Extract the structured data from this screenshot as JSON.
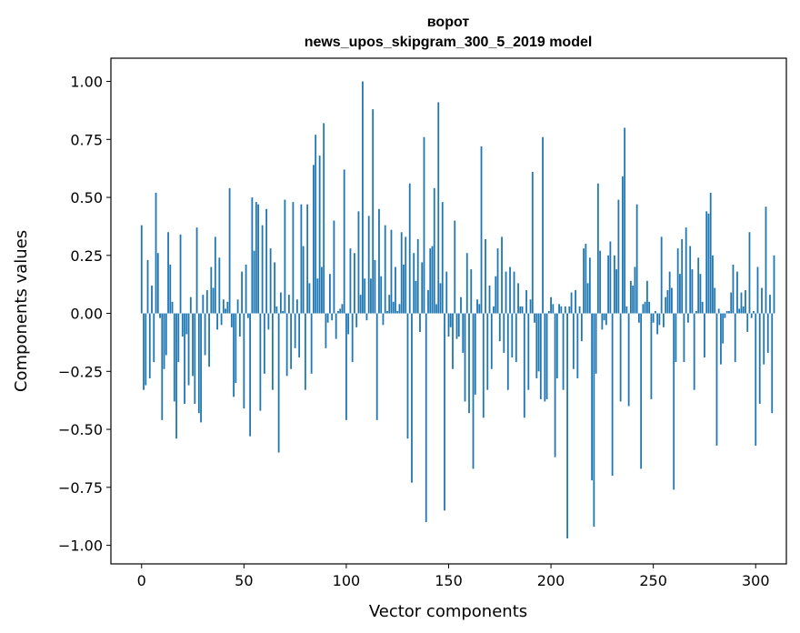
{
  "chart_data": {
    "type": "bar",
    "title": "ворот",
    "subtitle": "news_upos_skipgram_300_5_2019 model",
    "xlabel": "Vector components",
    "ylabel": "Components values",
    "xlim": [
      -15,
      315
    ],
    "ylim": [
      -1.08,
      1.1
    ],
    "xticks": [
      0,
      50,
      100,
      150,
      200,
      250,
      300
    ],
    "xtick_labels": [
      "0",
      "50",
      "100",
      "150",
      "200",
      "250",
      "300"
    ],
    "yticks": [
      1.0,
      0.75,
      0.5,
      0.25,
      0.0,
      -0.25,
      -0.5,
      -0.75,
      -1.0
    ],
    "ytick_labels": [
      "1.00",
      "0.75",
      "0.50",
      "0.25",
      "0.00",
      "−0.25",
      "−0.50",
      "−0.75",
      "−1.00"
    ],
    "bar_color": "#1f77b4",
    "grid": false,
    "values": [
      0.38,
      -0.33,
      -0.31,
      0.23,
      -0.28,
      0.12,
      -0.21,
      0.52,
      0.26,
      -0.02,
      -0.46,
      -0.24,
      -0.18,
      0.35,
      0.21,
      0.05,
      -0.38,
      -0.54,
      -0.21,
      0.34,
      -0.1,
      -0.39,
      -0.09,
      -0.31,
      0.07,
      -0.27,
      -0.39,
      0.37,
      -0.43,
      -0.47,
      0.08,
      -0.18,
      0.1,
      -0.23,
      0.2,
      0.11,
      0.33,
      -0.07,
      0.24,
      -0.05,
      0.06,
      0.02,
      0.05,
      0.54,
      -0.06,
      -0.36,
      -0.3,
      0.06,
      -0.1,
      0.18,
      -0.41,
      0.21,
      -0.02,
      -0.53,
      0.5,
      0.27,
      0.48,
      0.47,
      -0.42,
      0.38,
      -0.26,
      0.45,
      -0.07,
      0.28,
      -0.33,
      0.22,
      0.03,
      -0.6,
      0.09,
      0.01,
      0.49,
      -0.27,
      0.08,
      -0.24,
      0.48,
      -0.15,
      0.06,
      -0.19,
      0.47,
      0.29,
      -0.33,
      0.47,
      0.13,
      -0.26,
      0.64,
      0.77,
      0.15,
      0.68,
      0.2,
      0.82,
      -0.15,
      -0.04,
      0.17,
      -0.03,
      0.4,
      -0.11,
      0.01,
      0.02,
      0.04,
      0.62,
      -0.46,
      -0.09,
      0.28,
      -0.21,
      0.26,
      -0.06,
      0.44,
      0.08,
      1.0,
      0.15,
      -0.03,
      0.42,
      0.15,
      0.88,
      0.23,
      -0.46,
      0.45,
      0.16,
      -0.05,
      0.38,
      0.01,
      0.08,
      0.36,
      0.05,
      0.2,
      0.01,
      0.04,
      0.35,
      0.21,
      0.33,
      -0.54,
      0.56,
      -0.73,
      0.26,
      0.14,
      0.32,
      -0.08,
      0.22,
      0.76,
      -0.9,
      0.1,
      0.28,
      0.29,
      0.54,
      0.04,
      0.91,
      0.13,
      0.48,
      -0.85,
      0.18,
      -0.1,
      -0.06,
      -0.24,
      0.4,
      -0.11,
      -0.1,
      0.07,
      -0.17,
      -0.38,
      0.26,
      -0.43,
      0.19,
      -0.67,
      -0.35,
      0.06,
      0.04,
      0.72,
      -0.45,
      0.32,
      -0.33,
      0.12,
      -0.24,
      0.03,
      0.16,
      0.28,
      -0.12,
      0.33,
      -0.17,
      0.18,
      -0.33,
      0.2,
      -0.19,
      0.18,
      -0.21,
      0.13,
      0.03,
      0.03,
      -0.45,
      0.1,
      -0.33,
      0.06,
      0.61,
      -0.04,
      -0.28,
      -0.25,
      -0.37,
      0.76,
      -0.38,
      -0.37,
      0.01,
      0.07,
      0.04,
      -0.62,
      -0.28,
      0.04,
      0.03,
      -0.33,
      0.03,
      -0.97,
      0.03,
      0.09,
      -0.24,
      0.1,
      -0.28,
      0.03,
      -0.12,
      0.28,
      0.3,
      0.13,
      0.24,
      -0.72,
      -0.92,
      -0.26,
      0.56,
      0.27,
      -0.07,
      -0.03,
      -0.05,
      0.25,
      0.31,
      -0.7,
      0.25,
      0.19,
      0.49,
      -0.38,
      0.59,
      0.8,
      0.03,
      -0.4,
      0.14,
      0.12,
      0.2,
      0.47,
      -0.04,
      -0.67,
      0.04,
      0.05,
      0.14,
      0.05,
      -0.37,
      -0.04,
      0.01,
      -0.09,
      -0.05,
      0.33,
      -0.06,
      0.07,
      0.1,
      0.18,
      0.11,
      -0.76,
      -0.21,
      0.28,
      0.17,
      0.32,
      -0.21,
      0.37,
      -0.04,
      0.29,
      0.19,
      -0.33,
      0.01,
      0.24,
      0.17,
      0.05,
      -0.19,
      0.44,
      0.43,
      0.52,
      0.25,
      0.11,
      -0.57,
      0.02,
      -0.22,
      -0.13,
      -0.02,
      0.01,
      0.01,
      0.09,
      0.21,
      -0.21,
      0.18,
      0.02,
      0.09,
      0.03,
      0.1,
      -0.08,
      0.35,
      -0.02,
      0.01,
      -0.57,
      0.2,
      -0.39,
      0.11,
      -0.22,
      0.46,
      -0.17,
      0.08,
      -0.43,
      0.25
    ]
  }
}
